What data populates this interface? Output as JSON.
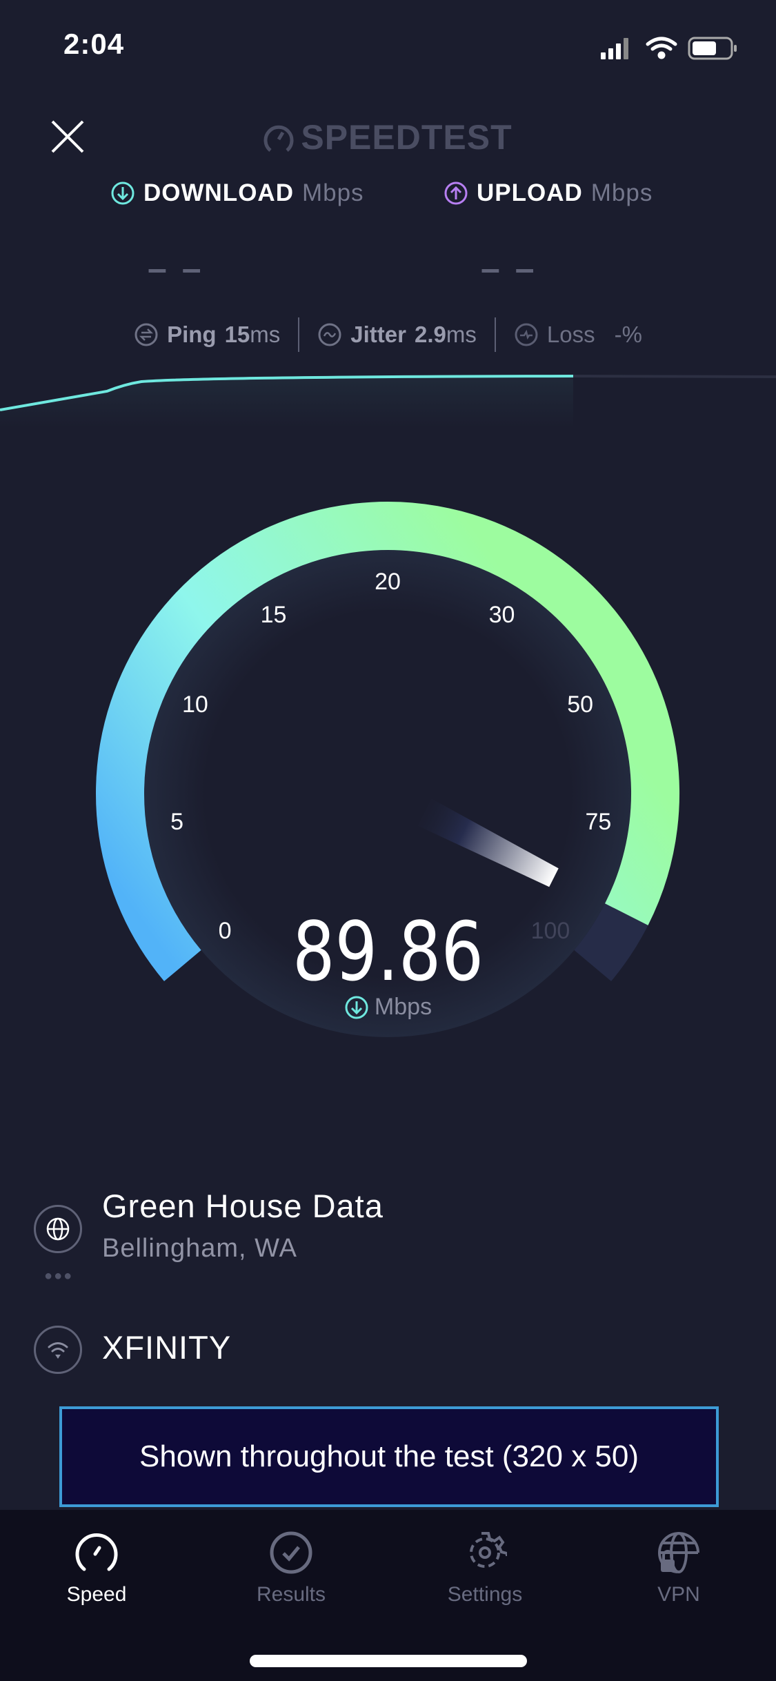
{
  "status_bar": {
    "time": "2:04",
    "icons": [
      "cellular-signal-icon",
      "wifi-icon",
      "battery-icon"
    ]
  },
  "header": {
    "logo_text": "SPEEDTEST",
    "close_icon": "close-icon"
  },
  "download": {
    "label": "DOWNLOAD",
    "unit": "Mbps",
    "value": "– –",
    "color": "#6fe8df"
  },
  "upload": {
    "label": "UPLOAD",
    "unit": "Mbps",
    "value": "– –",
    "color": "#b77ff2"
  },
  "stats": {
    "ping": {
      "label": "Ping",
      "value": "15",
      "unit": "ms"
    },
    "jitter": {
      "label": "Jitter",
      "value": "2.9",
      "unit": "ms"
    },
    "loss": {
      "label": "Loss",
      "value": "-",
      "unit": "%"
    }
  },
  "gauge": {
    "ticks": [
      "0",
      "5",
      "10",
      "15",
      "20",
      "30",
      "50",
      "75",
      "100"
    ],
    "value": 89.86,
    "value_text": "89.86",
    "unit": "Mbps",
    "progress_color_start": "#52b3f8",
    "progress_color_mid": "#8ff6ec",
    "progress_color_end": "#9dfc9f",
    "track_color": "#262c48"
  },
  "server": {
    "name": "Green House Data",
    "location": "Bellingham, WA"
  },
  "isp": {
    "name": "XFINITY"
  },
  "ad": {
    "text": "Shown throughout the test (320 x 50)"
  },
  "tabs": [
    {
      "label": "Speed",
      "icon": "speedometer-icon",
      "active": true
    },
    {
      "label": "Results",
      "icon": "checkmark-circle-icon",
      "active": false
    },
    {
      "label": "Settings",
      "icon": "gear-icon",
      "active": false
    },
    {
      "label": "VPN",
      "icon": "globe-lock-icon",
      "active": false
    }
  ]
}
